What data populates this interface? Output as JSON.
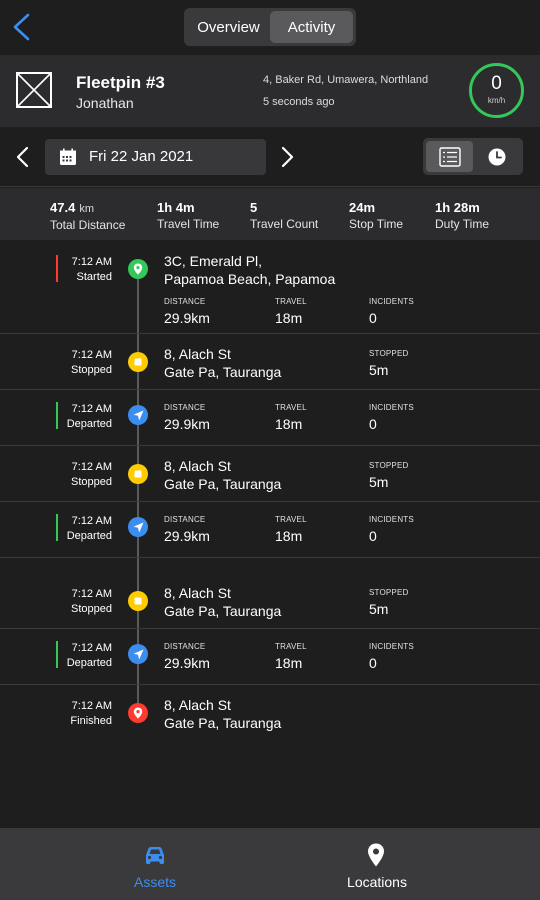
{
  "header": {
    "tabs": [
      {
        "label": "Overview",
        "active": false
      },
      {
        "label": "Activity",
        "active": true
      }
    ]
  },
  "asset": {
    "name": "Fleetpin #3",
    "driver": "Jonathan",
    "address": "4, Baker Rd, Umawera, Northland",
    "updated": "5 seconds ago",
    "speed": "0",
    "speed_unit": "km/h",
    "speed_ring_color": "#34c759"
  },
  "date_nav": {
    "date": "Fri 22 Jan 2021",
    "view_modes": [
      "list-icon",
      "clock-icon"
    ],
    "active_view": "list-icon"
  },
  "summary": [
    {
      "value": "47.4",
      "unit": "km",
      "label": "Total Distance"
    },
    {
      "value": "1h 4m",
      "unit": "",
      "label": "Travel Time"
    },
    {
      "value": "5",
      "unit": "",
      "label": "Travel Count"
    },
    {
      "value": "24m",
      "unit": "",
      "label": "Stop Time"
    },
    {
      "value": "1h 28m",
      "unit": "",
      "label": "Duty Time"
    }
  ],
  "timeline": [
    {
      "time": "7:12 AM",
      "status": "Started",
      "type": "start",
      "address": [
        "3C, Emerald Pl,",
        "Papamoa Beach, Papamoa"
      ],
      "metrics": [
        {
          "label": "DISTANCE",
          "value": "29.9km"
        },
        {
          "label": "TRAVEL",
          "value": "18m"
        },
        {
          "label": "INCIDENTS",
          "value": "0"
        }
      ]
    },
    {
      "time": "7:12 AM",
      "status": "Stopped",
      "type": "stop",
      "address": [
        "8, Alach St",
        "Gate Pa, Tauranga"
      ],
      "metrics": [
        {
          "label": "STOPPED",
          "value": "5m"
        }
      ]
    },
    {
      "time": "7:12 AM",
      "status": "Departed",
      "type": "depart",
      "address": [],
      "metrics": [
        {
          "label": "DISTANCE",
          "value": "29.9km"
        },
        {
          "label": "TRAVEL",
          "value": "18m"
        },
        {
          "label": "INCIDENTS",
          "value": "0"
        }
      ]
    },
    {
      "time": "7:12 AM",
      "status": "Stopped",
      "type": "stop",
      "address": [
        "8, Alach St",
        "Gate Pa, Tauranga"
      ],
      "metrics": [
        {
          "label": "STOPPED",
          "value": "5m"
        }
      ]
    },
    {
      "time": "7:12 AM",
      "status": "Departed",
      "type": "depart",
      "address": [],
      "metrics": [
        {
          "label": "DISTANCE",
          "value": "29.9km"
        },
        {
          "label": "TRAVEL",
          "value": "18m"
        },
        {
          "label": "INCIDENTS",
          "value": "0"
        }
      ]
    },
    {
      "time": "7:12 AM",
      "status": "Stopped",
      "type": "stop",
      "address": [
        "8, Alach St",
        "Gate Pa, Tauranga"
      ],
      "metrics": [
        {
          "label": "STOPPED",
          "value": "5m"
        }
      ]
    },
    {
      "time": "7:12 AM",
      "status": "Departed",
      "type": "depart",
      "address": [],
      "metrics": [
        {
          "label": "DISTANCE",
          "value": "29.9km"
        },
        {
          "label": "TRAVEL",
          "value": "18m"
        },
        {
          "label": "INCIDENTS",
          "value": "0"
        }
      ]
    },
    {
      "time": "7:12 AM",
      "status": "Finished",
      "type": "finish",
      "address": [
        "8, Alach St",
        "Gate Pa, Tauranga"
      ],
      "metrics": []
    }
  ],
  "colors": {
    "start": "#34c759",
    "stop": "#ffcc00",
    "depart": "#3b8ef0",
    "finish": "#ff3b30",
    "bar_start": "#ff3b30",
    "bar_depart": "#34c759",
    "accent": "#3b8ef0"
  },
  "bottom_nav": [
    {
      "label": "Assets",
      "icon": "car-icon",
      "active": true
    },
    {
      "label": "Locations",
      "icon": "location-pin-icon",
      "active": false
    }
  ]
}
